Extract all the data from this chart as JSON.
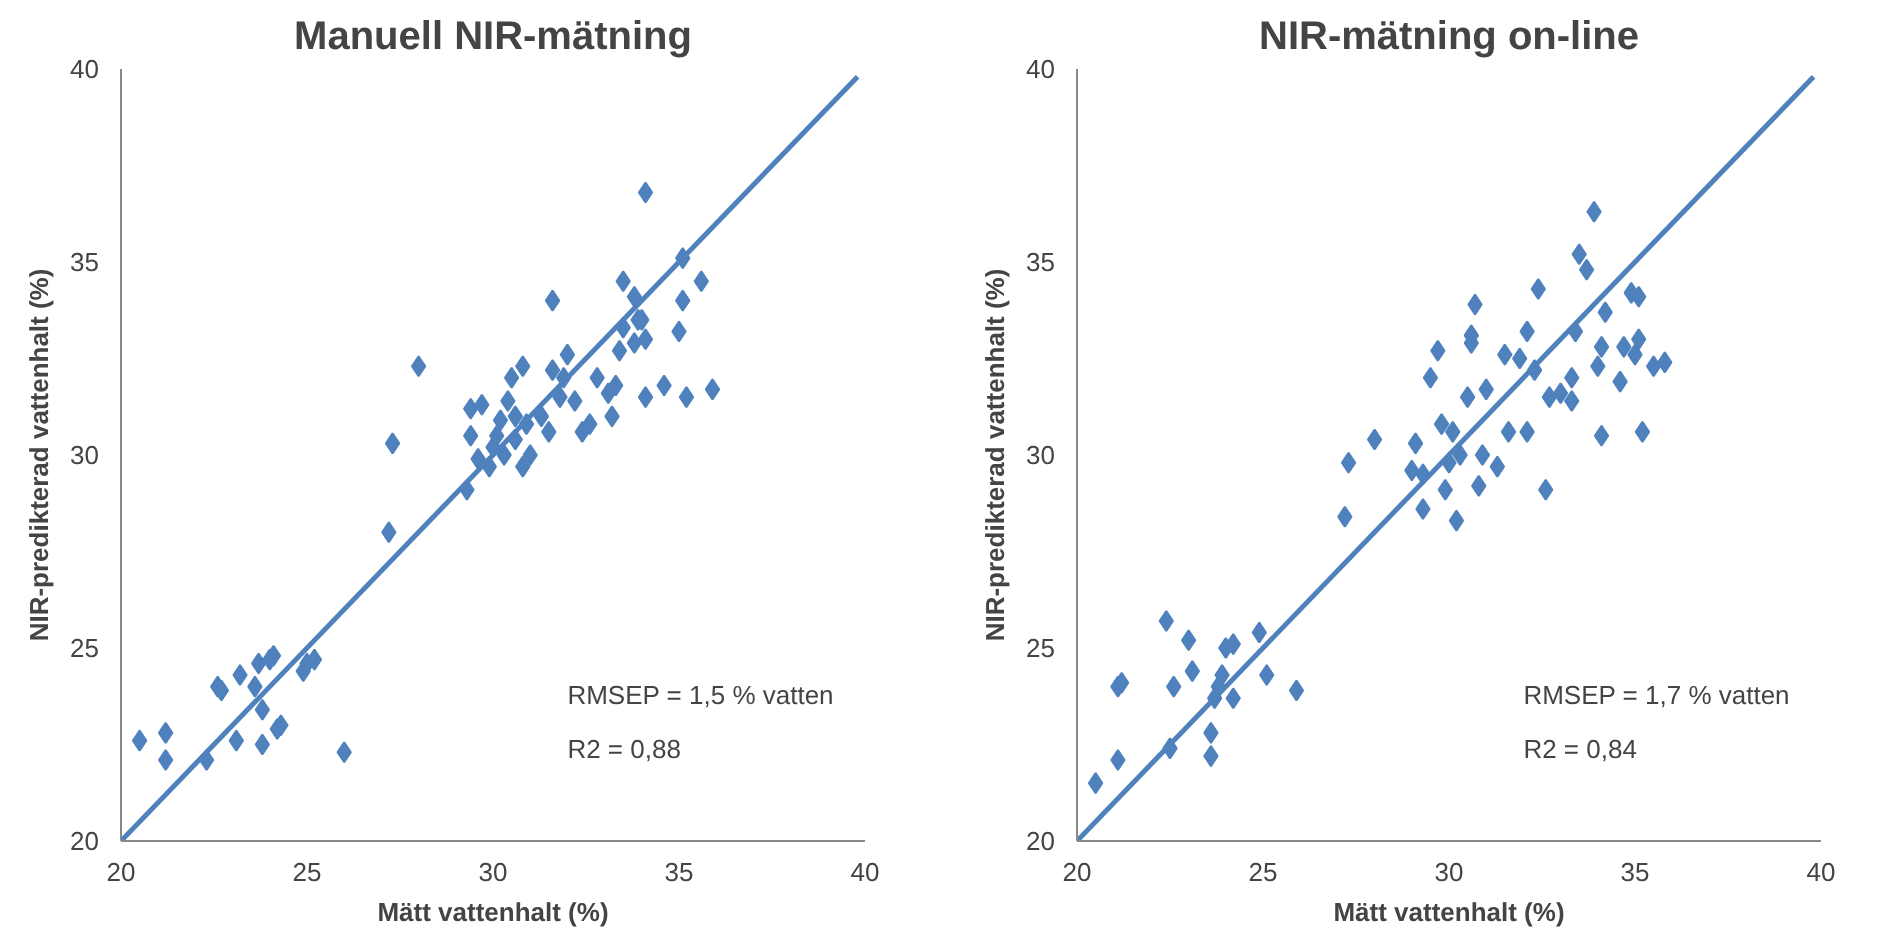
{
  "chart_data": [
    {
      "type": "scatter",
      "title": "Manuell NIR-mätning",
      "xlabel": "Mätt vattenhalt (%)",
      "ylabel": "NIR-predikterad vattenhalt (%)",
      "xlim": [
        20,
        40
      ],
      "ylim": [
        20,
        40
      ],
      "xticks": [
        20,
        25,
        30,
        35,
        40
      ],
      "yticks": [
        20,
        25,
        30,
        35,
        40
      ],
      "grid": false,
      "annotations": [
        "RMSEP = 1,5 % vatten",
        "R2 = 0,88"
      ],
      "series": [
        {
          "marker": "diamond",
          "color": "#4f81bd",
          "x": [
            20.5,
            21.2,
            21.2,
            22.3,
            22.6,
            22.7,
            23.2,
            23.1,
            23.6,
            23.7,
            23.8,
            24.0,
            23.8,
            24.1,
            24.3,
            24.2,
            24.9,
            25.0,
            25.2,
            26.0,
            27.2,
            27.3,
            28.0,
            29.3,
            29.4,
            29.4,
            29.7,
            29.6,
            29.9,
            30.0,
            30.1,
            30.2,
            30.3,
            30.4,
            30.5,
            30.6,
            30.6,
            30.8,
            30.8,
            30.9,
            31.0,
            31.3,
            31.5,
            31.6,
            31.6,
            31.8,
            31.9,
            32.0,
            32.2,
            32.4,
            32.6,
            32.8,
            33.1,
            33.2,
            33.3,
            33.4,
            33.5,
            33.5,
            33.8,
            33.8,
            33.9,
            34.1,
            34.1,
            34.1,
            34.6,
            35.0,
            35.1,
            35.2,
            35.6,
            35.9,
            35.1,
            34.0
          ],
          "values": [
            22.6,
            22.8,
            22.1,
            22.1,
            24.0,
            23.9,
            24.3,
            22.6,
            24.0,
            24.6,
            22.5,
            24.7,
            23.4,
            24.8,
            23.0,
            22.9,
            24.4,
            24.6,
            24.7,
            22.3,
            28.0,
            30.3,
            32.3,
            29.1,
            30.5,
            31.2,
            31.3,
            29.9,
            29.7,
            30.2,
            30.5,
            30.9,
            30.0,
            31.4,
            32.0,
            30.4,
            31.0,
            29.7,
            32.3,
            30.8,
            30.0,
            31.0,
            30.6,
            32.2,
            34.0,
            31.5,
            32.0,
            32.6,
            31.4,
            30.6,
            30.8,
            32.0,
            31.6,
            31.0,
            31.8,
            32.7,
            33.3,
            34.5,
            34.1,
            32.9,
            33.5,
            31.5,
            33.0,
            36.8,
            31.8,
            33.2,
            35.1,
            31.5,
            34.5,
            31.7,
            34.0,
            33.5
          ]
        },
        {
          "type": "line",
          "color": "#4f81bd",
          "x": [
            20,
            39.8
          ],
          "values": [
            20,
            39.8
          ]
        }
      ]
    },
    {
      "type": "scatter",
      "title": "NIR-mätning on-line",
      "xlabel": "Mätt vattenhalt (%)",
      "ylabel": "NIR-predikterad vattenhalt (%)",
      "xlim": [
        20,
        40
      ],
      "ylim": [
        20,
        40
      ],
      "xticks": [
        20,
        25,
        30,
        35,
        40
      ],
      "yticks": [
        20,
        25,
        30,
        35,
        40
      ],
      "grid": false,
      "annotations": [
        "RMSEP = 1,7 % vatten",
        "R2 = 0,84"
      ],
      "series": [
        {
          "marker": "diamond",
          "color": "#4f81bd",
          "x": [
            20.5,
            21.1,
            21.1,
            21.2,
            22.4,
            22.5,
            22.6,
            23.0,
            23.1,
            23.6,
            23.6,
            23.7,
            23.8,
            23.9,
            24.0,
            24.2,
            24.2,
            24.9,
            25.1,
            25.9,
            27.2,
            27.3,
            28.0,
            29.0,
            29.1,
            29.3,
            29.3,
            29.5,
            29.7,
            29.8,
            29.9,
            30.0,
            30.1,
            30.2,
            30.3,
            30.5,
            30.6,
            30.6,
            30.7,
            30.8,
            30.9,
            31.0,
            31.3,
            31.5,
            31.6,
            31.9,
            32.1,
            32.1,
            32.3,
            32.4,
            32.6,
            32.7,
            33.0,
            33.3,
            33.3,
            33.4,
            33.5,
            33.7,
            33.9,
            34.0,
            34.1,
            34.1,
            34.2,
            34.6,
            34.7,
            34.9,
            35.0,
            35.1,
            35.2,
            35.5,
            35.8,
            35.1
          ],
          "values": [
            21.5,
            22.1,
            24.0,
            24.1,
            25.7,
            22.4,
            24.0,
            25.2,
            24.4,
            22.8,
            22.2,
            23.7,
            24.0,
            24.3,
            25.0,
            25.1,
            23.7,
            25.4,
            24.3,
            23.9,
            28.4,
            29.8,
            30.4,
            29.6,
            30.3,
            28.6,
            29.5,
            32.0,
            32.7,
            30.8,
            29.1,
            29.8,
            30.6,
            28.3,
            30.0,
            31.5,
            32.9,
            33.1,
            33.9,
            29.2,
            30.0,
            31.7,
            29.7,
            32.6,
            30.6,
            32.5,
            30.6,
            33.2,
            32.2,
            34.3,
            29.1,
            31.5,
            31.6,
            31.4,
            32.0,
            33.2,
            35.2,
            34.8,
            36.3,
            32.3,
            32.8,
            30.5,
            33.7,
            31.9,
            32.8,
            34.2,
            32.6,
            33.0,
            30.6,
            32.3,
            32.4,
            34.1
          ]
        },
        {
          "type": "line",
          "color": "#4f81bd",
          "x": [
            20,
            39.8
          ],
          "values": [
            20,
            39.8
          ]
        }
      ]
    }
  ]
}
